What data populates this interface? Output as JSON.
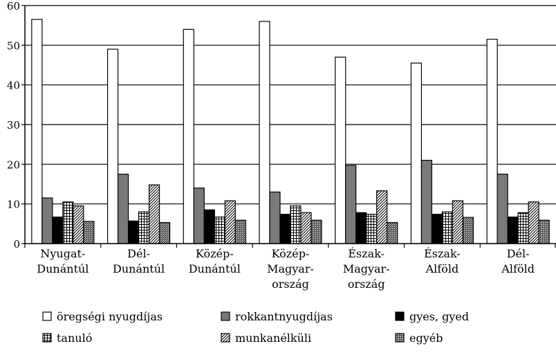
{
  "chart_data": {
    "type": "bar",
    "title": "",
    "xlabel": "",
    "ylabel": "",
    "ylim": [
      0,
      60
    ],
    "yticks": [
      0,
      10,
      20,
      30,
      40,
      50,
      60
    ],
    "grid": true,
    "legend_position": "bottom",
    "categories": [
      [
        "Nyugat-",
        "Dunántúl"
      ],
      [
        "Dél-",
        "Dunántúl"
      ],
      [
        "Közép-",
        "Dunántúl"
      ],
      [
        "Közép-",
        "Magyar-",
        "ország"
      ],
      [
        "Észak-",
        "Magyar-",
        "ország"
      ],
      [
        "Észak-",
        "Alföld"
      ],
      [
        "Dél-",
        "Alföld"
      ]
    ],
    "series": [
      {
        "name": "öregségi nyugdíjas",
        "pattern": "white",
        "values": [
          56.5,
          49,
          54,
          56,
          47,
          45.5,
          51.5
        ]
      },
      {
        "name": "rokkantnyugdíjas",
        "pattern": "gray",
        "values": [
          11.5,
          17.5,
          14,
          13,
          19.7,
          21,
          17.5
        ]
      },
      {
        "name": "gyes, gyed",
        "pattern": "black",
        "values": [
          6.7,
          5.7,
          8.5,
          7.4,
          7.8,
          7.4,
          6.7
        ]
      },
      {
        "name": "tanuló",
        "pattern": "grid",
        "values": [
          10.5,
          8,
          6.7,
          9.5,
          7.4,
          8,
          7.8
        ]
      },
      {
        "name": "munkanélküli",
        "pattern": "diagonal",
        "values": [
          9.5,
          14.8,
          10.8,
          7.8,
          13.3,
          10.8,
          10.5
        ]
      },
      {
        "name": "egyéb",
        "pattern": "checker",
        "values": [
          5.6,
          5.3,
          5.9,
          5.9,
          5.3,
          6.6,
          5.9
        ]
      }
    ]
  }
}
